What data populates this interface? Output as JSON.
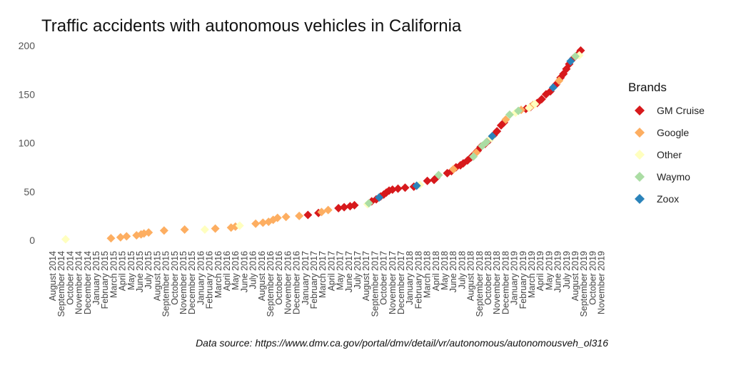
{
  "chart_data": {
    "type": "scatter",
    "title": "Traffic accidents with autonomous vehicles in California",
    "xlabel": "",
    "ylabel": "",
    "caption": "Data source: https://www.dmv.ca.gov/portal/dmv/detail/vr/autonomous/autonomousveh_ol316",
    "x_ticks": [
      "August 2014",
      "September 2014",
      "October 2014",
      "November 2014",
      "December 2014",
      "January 2015",
      "February 2015",
      "March 2015",
      "April 2015",
      "May 2015",
      "June 2015",
      "July 2015",
      "August 2015",
      "September 2015",
      "October 2015",
      "November 2015",
      "December 2015",
      "January 2016",
      "February 2016",
      "March 2016",
      "April 2016",
      "May 2016",
      "June 2016",
      "July 2016",
      "August 2016",
      "September 2016",
      "October 2016",
      "November 2016",
      "December 2016",
      "January 2017",
      "February 2017",
      "March 2017",
      "April 2017",
      "May 2017",
      "June 2017",
      "July 2017",
      "August 2017",
      "September 2017",
      "October 2017",
      "November 2017",
      "December 2017",
      "January 2018",
      "February 2018",
      "March 2018",
      "April 2018",
      "May 2018",
      "June 2018",
      "July 2018",
      "August 2018",
      "September 2018",
      "October 2018",
      "November 2018",
      "December 2018",
      "January 2019",
      "February 2019",
      "March 2019",
      "April 2019",
      "May 2019",
      "June 2019",
      "July 2019",
      "August 2019",
      "September 2019",
      "October 2019",
      "November 2019"
    ],
    "y_ticks": [
      0,
      50,
      100,
      150,
      200
    ],
    "ylim": [
      0,
      200
    ],
    "grid": false,
    "legend": {
      "title": "Brands",
      "position": "right",
      "entries": [
        {
          "name": "GM Cruise",
          "color": "#d7191c"
        },
        {
          "name": "Google",
          "color": "#fdae61"
        },
        {
          "name": "Other",
          "color": "#ffffbf"
        },
        {
          "name": "Waymo",
          "color": "#abdda4"
        },
        {
          "name": "Zoox",
          "color": "#2b83ba"
        }
      ]
    },
    "series": [
      {
        "name": "GM Cruise",
        "color": "#d7191c",
        "points": [
          {
            "x": "2017-01-10",
            "y": 26
          },
          {
            "x": "2017-02-15",
            "y": 28
          },
          {
            "x": "2017-04-25",
            "y": 33
          },
          {
            "x": "2017-05-15",
            "y": 34
          },
          {
            "x": "2017-06-05",
            "y": 35
          },
          {
            "x": "2017-06-20",
            "y": 36
          },
          {
            "x": "2017-08-20",
            "y": 40
          },
          {
            "x": "2017-09-05",
            "y": 42
          },
          {
            "x": "2017-09-20",
            "y": 45
          },
          {
            "x": "2017-10-01",
            "y": 47
          },
          {
            "x": "2017-10-10",
            "y": 49
          },
          {
            "x": "2017-10-20",
            "y": 51
          },
          {
            "x": "2017-11-01",
            "y": 52
          },
          {
            "x": "2017-11-20",
            "y": 53
          },
          {
            "x": "2017-12-15",
            "y": 54
          },
          {
            "x": "2018-01-15",
            "y": 55
          },
          {
            "x": "2018-03-01",
            "y": 61
          },
          {
            "x": "2018-03-25",
            "y": 62
          },
          {
            "x": "2018-04-01",
            "y": 64
          },
          {
            "x": "2018-05-10",
            "y": 69
          },
          {
            "x": "2018-05-25",
            "y": 71
          },
          {
            "x": "2018-06-10",
            "y": 75
          },
          {
            "x": "2018-06-25",
            "y": 77
          },
          {
            "x": "2018-07-05",
            "y": 79
          },
          {
            "x": "2018-07-20",
            "y": 82
          },
          {
            "x": "2018-08-01",
            "y": 85
          },
          {
            "x": "2018-08-15",
            "y": 89
          },
          {
            "x": "2018-08-25",
            "y": 92
          },
          {
            "x": "2018-09-05",
            "y": 96
          },
          {
            "x": "2018-09-20",
            "y": 99
          },
          {
            "x": "2018-10-05",
            "y": 103
          },
          {
            "x": "2018-10-20",
            "y": 108
          },
          {
            "x": "2018-11-01",
            "y": 112
          },
          {
            "x": "2018-11-15",
            "y": 118
          },
          {
            "x": "2018-11-25",
            "y": 121
          },
          {
            "x": "2019-02-10",
            "y": 135
          },
          {
            "x": "2019-02-25",
            "y": 137
          },
          {
            "x": "2019-03-20",
            "y": 141
          },
          {
            "x": "2019-04-05",
            "y": 145
          },
          {
            "x": "2019-04-20",
            "y": 150
          },
          {
            "x": "2019-05-05",
            "y": 153
          },
          {
            "x": "2019-05-25",
            "y": 160
          },
          {
            "x": "2019-06-10",
            "y": 167
          },
          {
            "x": "2019-06-20",
            "y": 171
          },
          {
            "x": "2019-06-30",
            "y": 176
          },
          {
            "x": "2019-07-10",
            "y": 181
          },
          {
            "x": "2019-07-25",
            "y": 187
          },
          {
            "x": "2019-08-10",
            "y": 191
          },
          {
            "x": "2019-08-20",
            "y": 195
          }
        ]
      },
      {
        "name": "Google",
        "color": "#fdae61",
        "points": [
          {
            "x": "2015-02-20",
            "y": 2
          },
          {
            "x": "2015-03-25",
            "y": 3
          },
          {
            "x": "2015-04-15",
            "y": 4
          },
          {
            "x": "2015-05-20",
            "y": 5
          },
          {
            "x": "2015-06-05",
            "y": 6
          },
          {
            "x": "2015-06-15",
            "y": 7
          },
          {
            "x": "2015-07-01",
            "y": 8
          },
          {
            "x": "2015-08-25",
            "y": 10
          },
          {
            "x": "2015-11-05",
            "y": 11
          },
          {
            "x": "2016-02-20",
            "y": 12
          },
          {
            "x": "2016-04-15",
            "y": 13
          },
          {
            "x": "2016-04-30",
            "y": 14
          },
          {
            "x": "2016-07-10",
            "y": 17
          },
          {
            "x": "2016-08-05",
            "y": 18
          },
          {
            "x": "2016-08-25",
            "y": 19
          },
          {
            "x": "2016-09-10",
            "y": 21
          },
          {
            "x": "2016-09-25",
            "y": 23
          },
          {
            "x": "2016-10-25",
            "y": 24
          },
          {
            "x": "2016-12-10",
            "y": 25
          },
          {
            "x": "2017-02-25",
            "y": 29
          },
          {
            "x": "2017-03-20",
            "y": 31
          },
          {
            "x": "2018-06-01",
            "y": 73
          },
          {
            "x": "2018-08-20",
            "y": 90
          },
          {
            "x": "2018-12-01",
            "y": 124
          },
          {
            "x": "2019-01-25",
            "y": 134
          },
          {
            "x": "2019-03-05",
            "y": 139
          },
          {
            "x": "2019-06-05",
            "y": 164
          }
        ]
      },
      {
        "name": "Other",
        "color": "#ffffbf",
        "points": [
          {
            "x": "2014-09-15",
            "y": 1
          },
          {
            "x": "2016-01-15",
            "y": 11
          },
          {
            "x": "2016-05-15",
            "y": 15
          },
          {
            "x": "2017-08-05",
            "y": 37
          },
          {
            "x": "2018-02-05",
            "y": 57
          },
          {
            "x": "2018-10-12",
            "y": 105
          },
          {
            "x": "2019-01-05",
            "y": 131
          },
          {
            "x": "2019-02-20",
            "y": 136
          },
          {
            "x": "2019-03-12",
            "y": 140
          },
          {
            "x": "2019-08-15",
            "y": 190
          }
        ]
      },
      {
        "name": "Waymo",
        "color": "#abdda4",
        "points": [
          {
            "x": "2017-08-10",
            "y": 38
          },
          {
            "x": "2018-04-10",
            "y": 67
          },
          {
            "x": "2018-08-10",
            "y": 86
          },
          {
            "x": "2018-09-10",
            "y": 97
          },
          {
            "x": "2018-09-25",
            "y": 101
          },
          {
            "x": "2018-12-15",
            "y": 129
          },
          {
            "x": "2019-01-15",
            "y": 133
          },
          {
            "x": "2019-08-01",
            "y": 189
          }
        ]
      },
      {
        "name": "Zoox",
        "color": "#2b83ba",
        "points": [
          {
            "x": "2017-09-15",
            "y": 44
          },
          {
            "x": "2018-01-25",
            "y": 56
          },
          {
            "x": "2018-10-15",
            "y": 107
          },
          {
            "x": "2019-05-15",
            "y": 157
          },
          {
            "x": "2019-07-15",
            "y": 184
          }
        ]
      }
    ]
  }
}
